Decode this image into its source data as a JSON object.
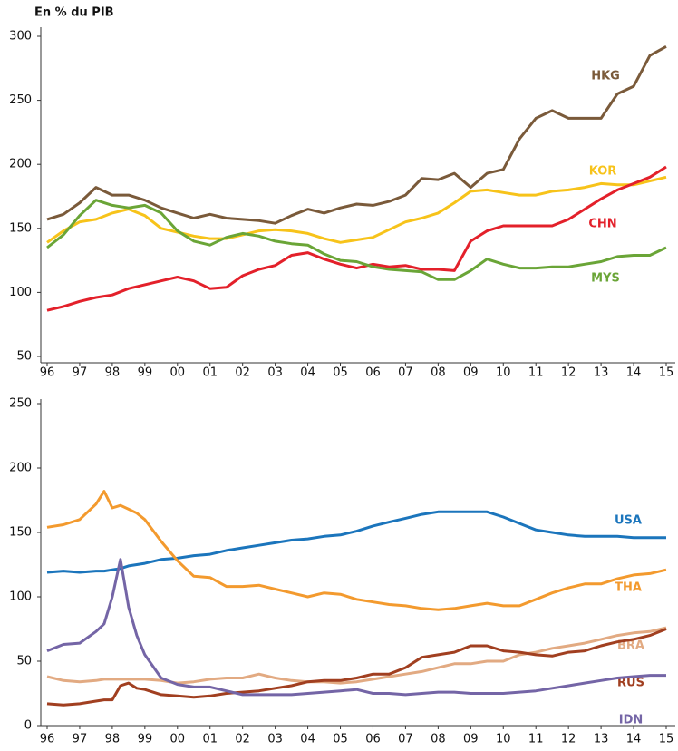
{
  "chart_data": [
    {
      "type": "line",
      "title": "En % du PIB",
      "x": [
        1996,
        1996.5,
        1997,
        1997.5,
        1998,
        1998.5,
        1999,
        1999.5,
        2000,
        2000.5,
        2001,
        2001.5,
        2002,
        2002.5,
        2003,
        2003.5,
        2004,
        2004.5,
        2005,
        2005.5,
        2006,
        2006.5,
        2007,
        2007.5,
        2008,
        2008.5,
        2009,
        2009.5,
        2010,
        2010.5,
        2011,
        2011.5,
        2012,
        2012.5,
        2013,
        2013.5,
        2014,
        2014.5,
        2015
      ],
      "xlim": [
        1996,
        2015
      ],
      "xticks": [
        {
          "value": 1996,
          "label": "96"
        },
        {
          "value": 1997,
          "label": "97"
        },
        {
          "value": 1998,
          "label": "98"
        },
        {
          "value": 1999,
          "label": "99"
        },
        {
          "value": 2000,
          "label": "00"
        },
        {
          "value": 2001,
          "label": "01"
        },
        {
          "value": 2002,
          "label": "02"
        },
        {
          "value": 2003,
          "label": "03"
        },
        {
          "value": 2004,
          "label": "04"
        },
        {
          "value": 2005,
          "label": "05"
        },
        {
          "value": 2006,
          "label": "06"
        },
        {
          "value": 2007,
          "label": "07"
        },
        {
          "value": 2008,
          "label": "08"
        },
        {
          "value": 2009,
          "label": "09"
        },
        {
          "value": 2010,
          "label": "10"
        },
        {
          "value": 2011,
          "label": "11"
        },
        {
          "value": 2012,
          "label": "12"
        },
        {
          "value": 2013,
          "label": "13"
        },
        {
          "value": 2014,
          "label": "14"
        },
        {
          "value": 2015,
          "label": "15"
        }
      ],
      "ylim": [
        50,
        300
      ],
      "yticks": [
        50,
        100,
        150,
        200,
        250,
        300
      ],
      "series": [
        {
          "name": "HKG",
          "color": "#7a5a3a",
          "values": [
            157,
            161,
            170,
            182,
            176,
            176,
            172,
            166,
            162,
            158,
            161,
            158,
            157,
            156,
            154,
            160,
            165,
            162,
            166,
            169,
            168,
            171,
            176,
            189,
            188,
            193,
            182,
            193,
            196,
            220,
            236,
            242,
            236,
            236,
            236,
            255,
            261,
            285,
            292
          ]
        },
        {
          "name": "KOR",
          "color": "#f7c31a",
          "values": [
            139,
            148,
            155,
            157,
            162,
            165,
            160,
            150,
            147,
            144,
            142,
            142,
            145,
            148,
            149,
            148,
            146,
            142,
            139,
            141,
            143,
            149,
            155,
            158,
            162,
            170,
            179,
            180,
            178,
            176,
            176,
            179,
            180,
            182,
            185,
            184,
            184,
            187,
            190
          ]
        },
        {
          "name": "CHN",
          "color": "#e3202a",
          "values": [
            86,
            89,
            93,
            96,
            98,
            103,
            106,
            109,
            112,
            109,
            103,
            104,
            113,
            118,
            121,
            129,
            131,
            126,
            122,
            119,
            122,
            120,
            121,
            118,
            118,
            117,
            140,
            148,
            152,
            152,
            152,
            152,
            157,
            165,
            173,
            180,
            185,
            190,
            198
          ]
        },
        {
          "name": "MYS",
          "color": "#6aa537",
          "values": [
            135,
            145,
            160,
            172,
            168,
            166,
            168,
            162,
            148,
            140,
            137,
            143,
            146,
            144,
            140,
            138,
            137,
            130,
            125,
            124,
            120,
            118,
            117,
            116,
            110,
            110,
            117,
            126,
            122,
            119,
            119,
            120,
            120,
            122,
            124,
            128,
            129,
            129,
            135
          ]
        }
      ]
    },
    {
      "type": "line",
      "x": [
        1996,
        1996.5,
        1997,
        1997.5,
        1997.75,
        1998,
        1998.25,
        1998.5,
        1998.75,
        1999,
        1999.5,
        2000,
        2000.5,
        2001,
        2001.5,
        2002,
        2002.5,
        2003,
        2003.5,
        2004,
        2004.5,
        2005,
        2005.5,
        2006,
        2006.5,
        2007,
        2007.5,
        2008,
        2008.5,
        2009,
        2009.5,
        2010,
        2010.5,
        2011,
        2011.5,
        2012,
        2012.5,
        2013,
        2013.5,
        2014,
        2014.5,
        2015
      ],
      "xlim": [
        1996,
        2015
      ],
      "xticks": [
        {
          "value": 1996,
          "label": "96"
        },
        {
          "value": 1997,
          "label": "97"
        },
        {
          "value": 1998,
          "label": "98"
        },
        {
          "value": 1999,
          "label": "99"
        },
        {
          "value": 2000,
          "label": "00"
        },
        {
          "value": 2001,
          "label": "01"
        },
        {
          "value": 2002,
          "label": "02"
        },
        {
          "value": 2003,
          "label": "03"
        },
        {
          "value": 2004,
          "label": "04"
        },
        {
          "value": 2005,
          "label": "05"
        },
        {
          "value": 2006,
          "label": "06"
        },
        {
          "value": 2007,
          "label": "07"
        },
        {
          "value": 2008,
          "label": "08"
        },
        {
          "value": 2009,
          "label": "09"
        },
        {
          "value": 2010,
          "label": "10"
        },
        {
          "value": 2011,
          "label": "11"
        },
        {
          "value": 2012,
          "label": "12"
        },
        {
          "value": 2013,
          "label": "13"
        },
        {
          "value": 2014,
          "label": "14"
        },
        {
          "value": 2015,
          "label": "15"
        }
      ],
      "ylim": [
        0,
        250
      ],
      "yticks": [
        0,
        50,
        100,
        150,
        200,
        250
      ],
      "series": [
        {
          "name": "USA",
          "color": "#1b75bc",
          "values": [
            119,
            120,
            119,
            120,
            120,
            121,
            122,
            124,
            125,
            126,
            129,
            130,
            132,
            133,
            136,
            138,
            140,
            142,
            144,
            145,
            147,
            148,
            151,
            155,
            158,
            161,
            164,
            166,
            166,
            166,
            166,
            162,
            157,
            152,
            150,
            148,
            147,
            147,
            147,
            146,
            146,
            146
          ]
        },
        {
          "name": "THA",
          "color": "#f39a2e",
          "values": [
            154,
            156,
            160,
            172,
            182,
            169,
            171,
            168,
            165,
            160,
            143,
            128,
            116,
            115,
            108,
            108,
            109,
            106,
            103,
            100,
            103,
            102,
            98,
            96,
            94,
            93,
            91,
            90,
            91,
            93,
            95,
            93,
            93,
            98,
            103,
            107,
            110,
            110,
            114,
            117,
            118,
            121
          ]
        },
        {
          "name": "BRA",
          "color": "#e2aa82",
          "values": [
            38,
            35,
            34,
            35,
            36,
            36,
            36,
            36,
            36,
            36,
            35,
            33,
            34,
            36,
            37,
            37,
            40,
            37,
            35,
            34,
            34,
            33,
            34,
            36,
            38,
            40,
            42,
            45,
            48,
            48,
            50,
            50,
            55,
            57,
            60,
            62,
            64,
            67,
            70,
            72,
            73,
            76
          ]
        },
        {
          "name": "RUS",
          "color": "#a13f20",
          "values": [
            17,
            16,
            17,
            19,
            20,
            20,
            31,
            33,
            29,
            28,
            24,
            23,
            22,
            23,
            25,
            26,
            27,
            29,
            31,
            34,
            35,
            35,
            37,
            40,
            40,
            45,
            53,
            55,
            57,
            62,
            62,
            58,
            57,
            55,
            54,
            57,
            58,
            62,
            65,
            67,
            70,
            75
          ]
        },
        {
          "name": "IDN",
          "color": "#7465a6",
          "values": [
            58,
            63,
            64,
            73,
            79,
            100,
            129,
            92,
            70,
            55,
            37,
            32,
            30,
            30,
            27,
            24,
            24,
            24,
            24,
            25,
            26,
            27,
            28,
            25,
            25,
            24,
            25,
            26,
            26,
            25,
            25,
            25,
            26,
            27,
            29,
            31,
            33,
            35,
            37,
            38,
            39,
            39
          ]
        }
      ]
    }
  ]
}
